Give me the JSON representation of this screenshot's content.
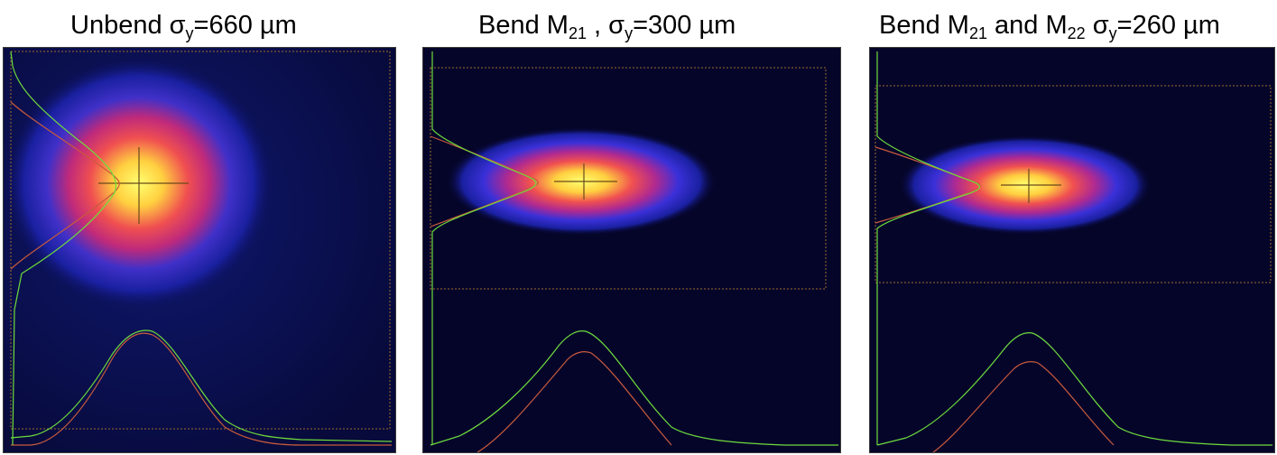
{
  "panels": [
    {
      "id": "unbend",
      "title": {
        "pre": "Unbend σ",
        "sub": "y",
        "post": "=660 µm"
      }
    },
    {
      "id": "bend-m21",
      "title": {
        "pre": "Bend M",
        "sub": "21",
        "mid": " , σ",
        "sub2": "y",
        "post": "=300 µm"
      }
    },
    {
      "id": "bend-m21-m22",
      "title": {
        "pre": "Bend M",
        "sub": "21",
        "mid": " and M",
        "sub2": "22",
        "mid2": " σ",
        "sub3": "y",
        "post": "=260 µm"
      }
    }
  ],
  "colors": {
    "background": "#05052a",
    "measured_profile": "#6edc3c",
    "fit_profile": "#c85a3c",
    "roi_box": "#a06a30",
    "crosshair": "#6a4a1a"
  }
}
